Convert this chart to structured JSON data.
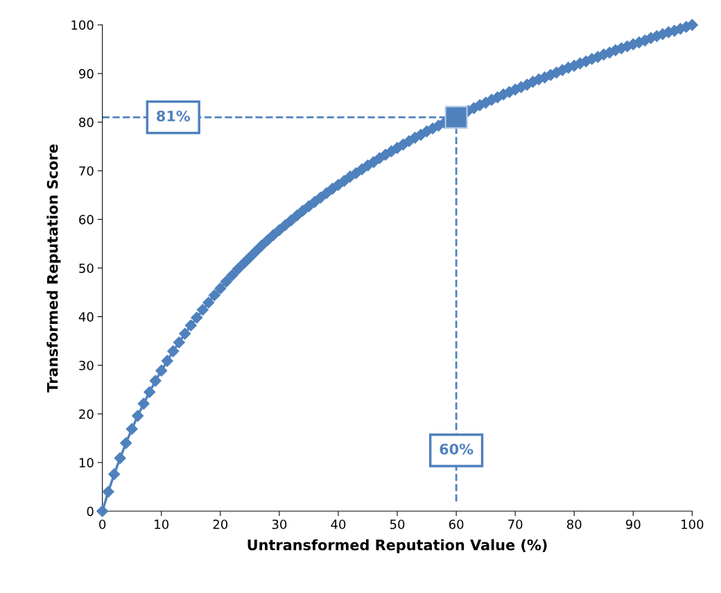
{
  "chart_data": {
    "type": "line",
    "xlabel": "Untransformed Reputation Value (%)",
    "ylabel": "Transformed Reputation Score",
    "xlim": [
      0,
      100
    ],
    "ylim": [
      0,
      100
    ],
    "xticks": [
      0,
      10,
      20,
      30,
      40,
      50,
      60,
      70,
      80,
      90,
      100
    ],
    "yticks": [
      0,
      10,
      20,
      30,
      40,
      50,
      60,
      70,
      80,
      90,
      100
    ],
    "grid": false,
    "marker": "diamond",
    "line_style": "solid",
    "series": [
      {
        "color": "#4f81bd",
        "x": [
          0,
          1,
          2,
          3,
          4,
          5,
          6,
          7,
          8,
          9,
          10,
          11,
          12,
          13,
          14,
          15,
          16,
          17,
          18,
          19,
          20,
          21,
          22,
          23,
          24,
          25,
          26,
          27,
          28,
          29,
          30,
          31,
          32,
          33,
          34,
          35,
          36,
          37,
          38,
          39,
          40,
          41,
          42,
          43,
          44,
          45,
          46,
          47,
          48,
          49,
          50,
          51,
          52,
          53,
          54,
          55,
          56,
          57,
          58,
          59,
          60,
          61,
          62,
          63,
          64,
          65,
          66,
          67,
          68,
          69,
          70,
          71,
          72,
          73,
          74,
          75,
          76,
          77,
          78,
          79,
          80,
          81,
          82,
          83,
          84,
          85,
          86,
          87,
          88,
          89,
          90,
          91,
          92,
          93,
          94,
          95,
          96,
          97,
          98,
          99,
          100
        ],
        "values": [
          0,
          4.0,
          7.6,
          10.9,
          14.0,
          16.9,
          19.6,
          22.1,
          24.5,
          26.8,
          28.9,
          30.9,
          32.9,
          34.7,
          36.5,
          38.2,
          39.8,
          41.4,
          42.9,
          44.4,
          45.8,
          47.2,
          48.5,
          49.8,
          51.0,
          52.2,
          53.4,
          54.6,
          55.7,
          56.8,
          57.8,
          58.8,
          59.8,
          60.8,
          61.8,
          62.7,
          63.6,
          64.5,
          65.4,
          66.3,
          67.1,
          67.9,
          68.8,
          69.5,
          70.3,
          71.1,
          71.8,
          72.6,
          73.3,
          74.0,
          74.7,
          75.4,
          76.1,
          76.8,
          77.4,
          78.1,
          78.7,
          79.3,
          79.9,
          80.6,
          81.2,
          81.7,
          82.3,
          82.9,
          83.5,
          84.0,
          84.6,
          85.1,
          85.7,
          86.2,
          86.7,
          87.2,
          87.7,
          88.3,
          88.8,
          89.2,
          89.7,
          90.2,
          90.7,
          91.2,
          91.6,
          92.1,
          92.5,
          93.0,
          93.4,
          93.9,
          94.3,
          94.8,
          95.2,
          95.6,
          96.0,
          96.4,
          96.8,
          97.3,
          97.7,
          98.1,
          98.5,
          98.8,
          99.2,
          99.6,
          100
        ]
      },
      {
        "type": "scatter",
        "marker": "square",
        "color": "#4f81bd",
        "x": [
          60
        ],
        "values": [
          81
        ]
      }
    ],
    "ref_lines": [
      {
        "axis": "y",
        "value": 81,
        "label": "81%",
        "color": "#4f81bd",
        "line_style": "dashed"
      },
      {
        "axis": "x",
        "value": 60,
        "label": "60%",
        "color": "#4f81bd",
        "line_style": "dashed"
      }
    ]
  }
}
